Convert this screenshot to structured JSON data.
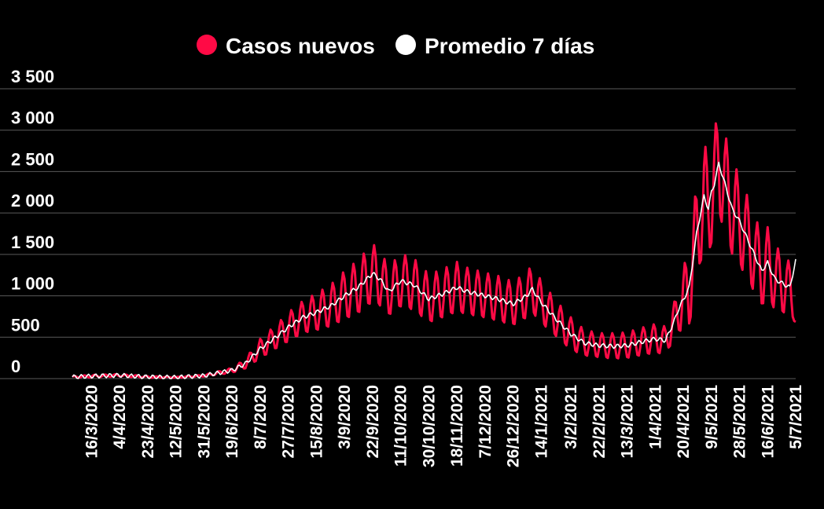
{
  "colors": {
    "new_cases": "#ff0a45",
    "avg7": "#ffffff",
    "background": "#000000",
    "grid": "#5a5a5a"
  },
  "chart_data": {
    "type": "line",
    "grid": true,
    "legend": "top-center",
    "ylim": [
      0,
      3500
    ],
    "yticks": [
      0,
      500,
      1000,
      1500,
      2000,
      2500,
      3000,
      3500
    ],
    "ytick_labels": [
      "0",
      "500",
      "1 000",
      "1 500",
      "2 000",
      "2 500",
      "3 000",
      "3 500"
    ],
    "xlim": [
      "2020-03-03",
      "2021-07-05"
    ],
    "xtick_labels": [
      "16/3/2020",
      "4/4/2020",
      "23/4/2020",
      "12/5/2020",
      "31/5/2020",
      "19/6/2020",
      "8/7/2020",
      "27/7/2020",
      "15/8/2020",
      "3/9/2020",
      "22/9/2020",
      "11/10/2020",
      "30/10/2020",
      "18/11/2020",
      "7/12/2020",
      "26/12/2020",
      "14/1/2021",
      "3/2/2021",
      "22/2/2021",
      "13/3/2021",
      "1/4/2021",
      "20/4/2021",
      "9/5/2021",
      "28/5/2021",
      "16/6/2021",
      "5/7/2021"
    ],
    "series": [
      {
        "name": "Casos nuevos",
        "color": "#ff0a45",
        "style": "daily values oscillating around the weekly average",
        "x": [
          "2020-03-03",
          "2020-03-16",
          "2020-04-04",
          "2020-04-23",
          "2020-05-12",
          "2020-05-31",
          "2020-06-19",
          "2020-06-28",
          "2020-07-08",
          "2020-07-20",
          "2020-07-27",
          "2020-08-06",
          "2020-08-15",
          "2020-08-25",
          "2020-09-03",
          "2020-09-12",
          "2020-09-18",
          "2020-09-22",
          "2020-09-27",
          "2020-10-03",
          "2020-10-11",
          "2020-10-20",
          "2020-10-30",
          "2020-11-08",
          "2020-11-18",
          "2020-11-25",
          "2020-12-07",
          "2020-12-16",
          "2020-12-26",
          "2021-01-04",
          "2021-01-08",
          "2021-01-14",
          "2021-01-24",
          "2021-02-03",
          "2021-02-12",
          "2021-02-22",
          "2021-03-04",
          "2021-03-13",
          "2021-03-22",
          "2021-04-01",
          "2021-04-08",
          "2021-04-14",
          "2021-04-17",
          "2021-04-20",
          "2021-04-24",
          "2021-04-29",
          "2021-05-04",
          "2021-05-07",
          "2021-05-09",
          "2021-05-11",
          "2021-05-14",
          "2021-05-19",
          "2021-05-23",
          "2021-05-28",
          "2021-06-02",
          "2021-06-07",
          "2021-06-12",
          "2021-06-16",
          "2021-06-21",
          "2021-06-26",
          "2021-07-01",
          "2021-07-05"
        ],
        "values": [
          20,
          30,
          40,
          20,
          15,
          35,
          100,
          180,
          360,
          520,
          620,
          740,
          800,
          880,
          1000,
          1100,
          1200,
          1270,
          1200,
          1050,
          1180,
          1130,
          960,
          1020,
          1100,
          1050,
          1000,
          960,
          900,
          1000,
          1080,
          920,
          720,
          540,
          430,
          400,
          390,
          400,
          440,
          480,
          460,
          700,
          850,
          950,
          1100,
          1750,
          2200,
          2050,
          2250,
          2350,
          2600,
          2300,
          2050,
          1900,
          1700,
          1500,
          1300,
          1400,
          1200,
          1150,
          1100,
          700
        ],
        "amplitude": [
          10,
          15,
          15,
          10,
          5,
          10,
          30,
          60,
          120,
          150,
          180,
          200,
          230,
          260,
          300,
          330,
          350,
          360,
          340,
          300,
          330,
          320,
          300,
          300,
          310,
          290,
          280,
          280,
          270,
          280,
          300,
          260,
          220,
          200,
          160,
          150,
          160,
          160,
          170,
          180,
          170,
          230,
          300,
          380,
          500,
          600,
          650,
          650,
          650,
          650,
          650,
          600,
          580,
          560,
          520,
          480,
          450,
          430,
          400,
          380,
          300,
          50
        ]
      },
      {
        "name": "Promedio 7 días",
        "color": "#ffffff",
        "x": [
          "2020-03-03",
          "2020-03-16",
          "2020-04-04",
          "2020-04-23",
          "2020-05-12",
          "2020-05-31",
          "2020-06-19",
          "2020-06-28",
          "2020-07-08",
          "2020-07-20",
          "2020-07-27",
          "2020-08-06",
          "2020-08-15",
          "2020-08-25",
          "2020-09-03",
          "2020-09-12",
          "2020-09-18",
          "2020-09-22",
          "2020-09-27",
          "2020-10-03",
          "2020-10-11",
          "2020-10-20",
          "2020-10-30",
          "2020-11-08",
          "2020-11-18",
          "2020-11-25",
          "2020-12-07",
          "2020-12-16",
          "2020-12-26",
          "2021-01-04",
          "2021-01-08",
          "2021-01-14",
          "2021-01-24",
          "2021-02-03",
          "2021-02-12",
          "2021-02-22",
          "2021-03-04",
          "2021-03-13",
          "2021-03-22",
          "2021-04-01",
          "2021-04-08",
          "2021-04-14",
          "2021-04-17",
          "2021-04-20",
          "2021-04-24",
          "2021-04-29",
          "2021-05-04",
          "2021-05-07",
          "2021-05-09",
          "2021-05-11",
          "2021-05-14",
          "2021-05-19",
          "2021-05-23",
          "2021-05-28",
          "2021-06-02",
          "2021-06-07",
          "2021-06-12",
          "2021-06-16",
          "2021-06-21",
          "2021-06-26",
          "2021-07-01",
          "2021-07-05"
        ],
        "values": [
          20,
          30,
          40,
          20,
          15,
          35,
          100,
          180,
          360,
          520,
          620,
          740,
          800,
          880,
          1000,
          1100,
          1200,
          1270,
          1200,
          1050,
          1180,
          1130,
          960,
          1020,
          1100,
          1050,
          1000,
          960,
          900,
          1000,
          1080,
          920,
          720,
          540,
          430,
          400,
          390,
          400,
          440,
          480,
          460,
          700,
          850,
          950,
          1100,
          1750,
          2200,
          2050,
          2250,
          2350,
          2600,
          2300,
          2050,
          1900,
          1700,
          1500,
          1300,
          1400,
          1200,
          1150,
          1100,
          1420
        ]
      }
    ]
  },
  "legend": {
    "item1": "Casos nuevos",
    "item2": "Promedio 7 días"
  }
}
